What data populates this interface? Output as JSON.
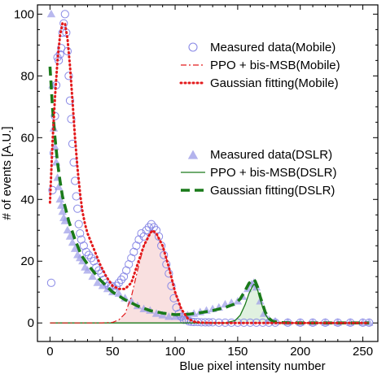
{
  "chart_data": {
    "type": "line",
    "xlabel": "Blue pixel intensity number",
    "ylabel": "# of events [A.U.]",
    "xlim": [
      -10,
      262
    ],
    "ylim": [
      -6,
      103
    ],
    "xticks": [
      0,
      50,
      100,
      150,
      200,
      250
    ],
    "yticks": [
      0,
      20,
      40,
      60,
      80,
      100
    ],
    "grid": false,
    "colors": {
      "mobile_marker": "#8a8ae6",
      "mobile_fit": "#e31a1c",
      "dslr_marker": "#a0a0e8",
      "dslr_fit": "#1a7a1a",
      "mobile_fill": "#f7d6d6",
      "dslr_fill": "#d6ecd6"
    },
    "legend_groups": [
      {
        "placement": "top-right",
        "entries": [
          {
            "label": "Measured data(Mobile)",
            "marker": "open-circle"
          },
          {
            "label": "PPO + bis-MSB(Mobile)",
            "marker": "dash-dot"
          },
          {
            "label": "Gaussian fitting(Mobile)",
            "marker": "dotted"
          }
        ]
      },
      {
        "placement": "center-right",
        "entries": [
          {
            "label": "Measured data(DSLR)",
            "marker": "triangle"
          },
          {
            "label": "PPO + bis-MSB(DSLR)",
            "marker": "solid"
          },
          {
            "label": "Gaussian fitting(DSLR)",
            "marker": "dashed"
          }
        ]
      }
    ],
    "series": [
      {
        "name": "Measured data(Mobile)",
        "style": "open-circle",
        "x": [
          1,
          2,
          3,
          4,
          5,
          6,
          7,
          8,
          9,
          10,
          11,
          12,
          13,
          14,
          15,
          16,
          17,
          18,
          19,
          20,
          21,
          22,
          23,
          24,
          25,
          27,
          29,
          31,
          33,
          35,
          37,
          39,
          41,
          43,
          45,
          47,
          49,
          51,
          53,
          55,
          57,
          59,
          61,
          63,
          65,
          67,
          69,
          71,
          73,
          75,
          77,
          79,
          81,
          83,
          85,
          87,
          89,
          91,
          93,
          95,
          97,
          99,
          101,
          103,
          105,
          107,
          109,
          111,
          113,
          115,
          118,
          121,
          124,
          127,
          130,
          135,
          140,
          145,
          150,
          155,
          160,
          165,
          170,
          175,
          180,
          190,
          200,
          210,
          220,
          230,
          240,
          250,
          255
        ],
        "y": [
          13,
          43,
          55,
          67,
          77,
          86,
          85,
          87,
          89,
          94,
          97,
          100,
          94,
          88,
          80,
          72,
          66,
          58,
          52,
          46,
          41,
          37,
          32,
          29,
          27,
          25,
          23,
          22,
          21,
          20,
          18,
          17,
          16,
          14,
          13,
          12,
          12,
          11,
          12,
          13,
          14,
          15,
          17,
          19,
          21,
          23,
          25,
          27,
          29,
          28,
          30,
          31,
          32,
          31,
          30,
          28,
          25,
          22,
          19,
          16,
          12,
          8,
          5,
          3,
          2,
          1,
          1,
          0.5,
          0.4,
          0.3,
          0.3,
          0.2,
          0.2,
          0.2,
          0.2,
          0.1,
          0.1,
          0.1,
          0.1,
          0.1,
          0.1,
          0.1,
          0.1,
          0.1,
          0.1,
          0.1,
          0.1,
          0.1,
          0.1,
          0.1,
          0.1,
          0.1,
          0.1
        ]
      },
      {
        "name": "PPO + bis-MSB(Mobile)",
        "style": "dash-dot",
        "x": [
          0,
          20,
          40,
          50,
          55,
          60,
          65,
          70,
          75,
          80,
          82,
          85,
          90,
          95,
          100,
          105,
          110,
          115,
          120,
          150,
          200,
          255
        ],
        "y": [
          0,
          0,
          0,
          0.2,
          1.0,
          3.0,
          8.5,
          17,
          25,
          29,
          30,
          29,
          25,
          18,
          10,
          4.5,
          1.5,
          0.4,
          0.1,
          0,
          0,
          0
        ]
      },
      {
        "name": "Gaussian fitting(Mobile)",
        "style": "dotted",
        "x": [
          0,
          2,
          4,
          6,
          8,
          10,
          12,
          14,
          16,
          18,
          20,
          22,
          24,
          26,
          28,
          30,
          35,
          40,
          45,
          50,
          55,
          60,
          65,
          70,
          75,
          80,
          82,
          85,
          90,
          95,
          100,
          105,
          110,
          115,
          120,
          130,
          150,
          200,
          255
        ],
        "y": [
          39,
          58,
          73,
          85,
          93,
          97,
          97,
          92,
          83,
          72,
          60,
          50,
          42,
          36,
          32,
          29,
          24,
          19,
          15,
          12,
          11,
          11,
          13,
          19,
          25,
          29,
          30,
          29,
          25,
          18,
          10,
          4.5,
          1.5,
          0.4,
          0.1,
          0,
          0,
          0,
          0
        ]
      },
      {
        "name": "Measured data(DSLR)",
        "style": "triangle",
        "x": [
          1,
          2,
          3,
          4,
          5,
          6,
          7,
          8,
          9,
          10,
          11,
          12,
          14,
          16,
          18,
          20,
          22,
          24,
          26,
          28,
          30,
          34,
          38,
          42,
          46,
          50,
          55,
          60,
          65,
          70,
          75,
          80,
          85,
          90,
          95,
          100,
          105,
          110,
          115,
          120,
          125,
          130,
          135,
          140,
          145,
          150,
          154,
          158,
          161,
          163,
          165,
          168,
          171,
          175,
          180,
          190,
          200,
          210,
          220,
          230,
          240,
          250,
          255
        ],
        "y": [
          100,
          77,
          63,
          57,
          52,
          47,
          44,
          40,
          38,
          36,
          34,
          33,
          30,
          28,
          26,
          24,
          22,
          21,
          20,
          18,
          17,
          15,
          13,
          12,
          11,
          10,
          9.5,
          8,
          7,
          5.5,
          4.5,
          4,
          3,
          2.5,
          2,
          2,
          2,
          2.5,
          3,
          3.5,
          4,
          4.5,
          5,
          6,
          6.5,
          7,
          8.5,
          11,
          12.5,
          13,
          11.5,
          7,
          3,
          1,
          0.5,
          0.2,
          0.1,
          0.1,
          0.1,
          0.1,
          0.1,
          0.1,
          0.1
        ]
      },
      {
        "name": "PPO + bis-MSB(DSLR)",
        "style": "solid",
        "x": [
          0,
          100,
          140,
          148,
          152,
          156,
          159,
          162,
          163,
          164,
          166,
          168,
          170,
          172,
          175,
          178,
          185,
          255
        ],
        "y": [
          0,
          0,
          0,
          0.8,
          2.5,
          6,
          9.5,
          12,
          12.5,
          12.2,
          10.5,
          7.8,
          5,
          2.8,
          1,
          0.3,
          0,
          0
        ]
      },
      {
        "name": "Gaussian fitting(DSLR)",
        "style": "dashed",
        "x": [
          0,
          2,
          4,
          6,
          8,
          10,
          15,
          20,
          25,
          30,
          40,
          50,
          60,
          70,
          80,
          90,
          100,
          110,
          120,
          130,
          140,
          148,
          152,
          156,
          159,
          162,
          163,
          164,
          166,
          168,
          170,
          172,
          175,
          178,
          185,
          200,
          255
        ],
        "y": [
          83,
          70,
          60,
          52,
          46,
          41,
          33,
          27,
          22,
          19,
          14,
          10,
          7.5,
          5.5,
          4,
          3.2,
          2.7,
          2.8,
          3.3,
          4,
          5,
          6.2,
          7.8,
          10.5,
          12.8,
          14,
          14,
          13.5,
          11.5,
          8.5,
          6,
          3.5,
          1.5,
          0.5,
          0.1,
          0,
          0
        ]
      }
    ]
  }
}
